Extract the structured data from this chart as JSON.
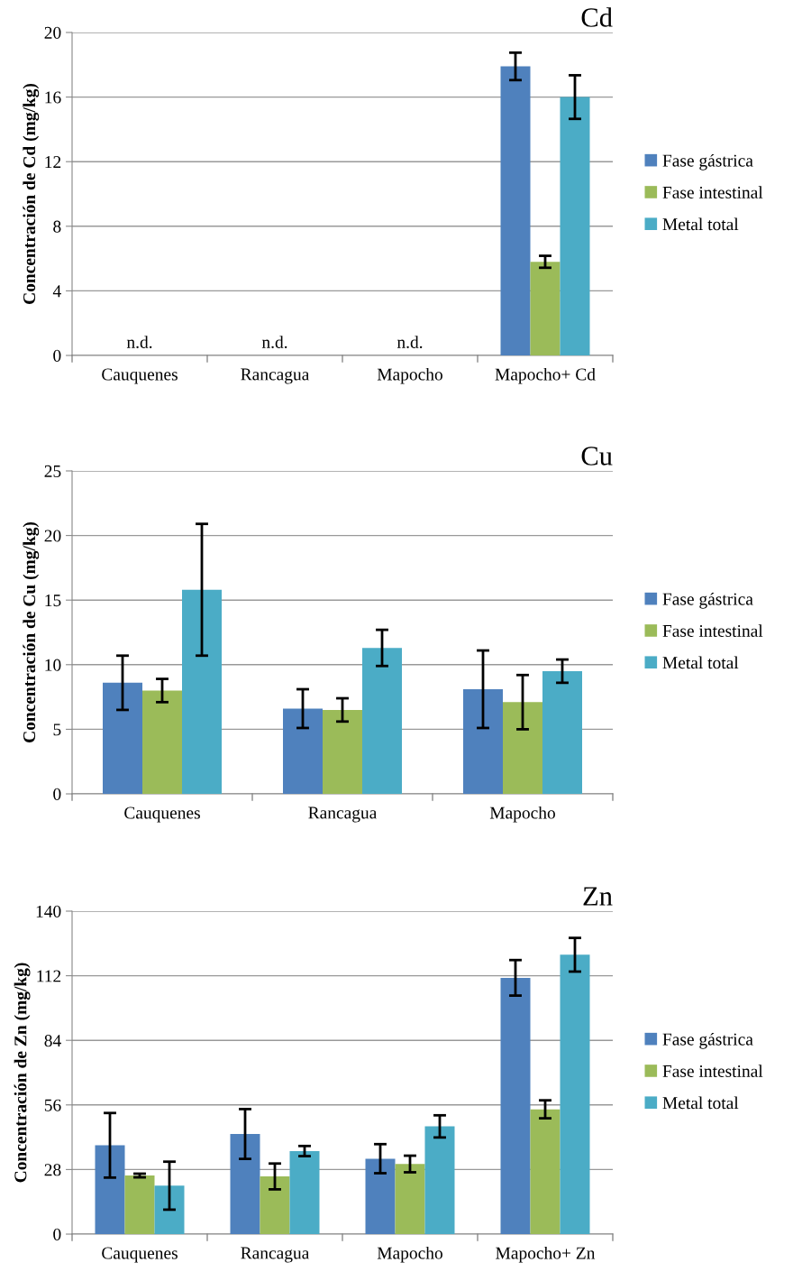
{
  "chart_data": [
    {
      "type": "bar",
      "title": "Cd",
      "ylabel": "Concentración de Cd (mg/kg)",
      "categories": [
        "Cauquenes",
        "Rancagua",
        "Mapocho",
        "Mapocho+ Cd"
      ],
      "series": [
        {
          "name": "Fase gástrica",
          "color": "#4f81bd",
          "values": [
            null,
            null,
            null,
            17.9
          ],
          "errors": [
            null,
            null,
            null,
            0.85
          ]
        },
        {
          "name": "Fase intestinal",
          "color": "#9bbb59",
          "values": [
            null,
            null,
            null,
            5.8
          ],
          "errors": [
            null,
            null,
            null,
            0.37
          ]
        },
        {
          "name": "Metal total",
          "color": "#4bacc6",
          "values": [
            null,
            null,
            null,
            16.0
          ],
          "errors": [
            null,
            null,
            null,
            1.35
          ]
        }
      ],
      "annotations": [
        "n.d.",
        "n.d.",
        "n.d."
      ],
      "ylim": [
        0,
        20
      ],
      "yticks": [
        0,
        4,
        8,
        12,
        16,
        20
      ],
      "grid": "y",
      "legend": "right"
    },
    {
      "type": "bar",
      "title": "Cu",
      "ylabel": "Concentración de Cu (mg/kg)",
      "categories": [
        "Cauquenes",
        "Rancagua",
        "Mapocho"
      ],
      "series": [
        {
          "name": "Fase gástrica",
          "color": "#4f81bd",
          "values": [
            8.6,
            6.6,
            8.1
          ],
          "errors": [
            2.1,
            1.5,
            3.0
          ]
        },
        {
          "name": "Fase intestinal",
          "color": "#9bbb59",
          "values": [
            8.0,
            6.5,
            7.1
          ],
          "errors": [
            0.9,
            0.9,
            2.1
          ]
        },
        {
          "name": "Metal total",
          "color": "#4bacc6",
          "values": [
            15.8,
            11.3,
            9.5
          ],
          "errors": [
            5.1,
            1.4,
            0.9
          ]
        }
      ],
      "ylim": [
        0,
        25
      ],
      "yticks": [
        0,
        5,
        10,
        15,
        20,
        25
      ],
      "grid": "y",
      "legend": "right"
    },
    {
      "type": "bar",
      "title": "Zn",
      "ylabel": "Concentración de Zn (mg/kg)",
      "categories": [
        "Cauquenes",
        "Rancagua",
        "Mapocho",
        "Mapocho+ Zn"
      ],
      "series": [
        {
          "name": "Fase gástrica",
          "color": "#4f81bd",
          "values": [
            38.5,
            43.4,
            32.7,
            111.1
          ],
          "errors": [
            14,
            10.8,
            6.3,
            7.7
          ]
        },
        {
          "name": "Fase intestinal",
          "color": "#9bbb59",
          "values": [
            25.4,
            25.0,
            30.4,
            54.1
          ],
          "errors": [
            0.8,
            5.6,
            3.6,
            3.9
          ]
        },
        {
          "name": "Metal total",
          "color": "#4bacc6",
          "values": [
            21.0,
            36.0,
            46.7,
            121.1
          ],
          "errors": [
            10.4,
            2.2,
            4.8,
            7.3
          ]
        }
      ],
      "ylim": [
        0,
        140
      ],
      "yticks": [
        0,
        28,
        56,
        84,
        112,
        140
      ],
      "grid": "y",
      "legend": "right"
    }
  ]
}
